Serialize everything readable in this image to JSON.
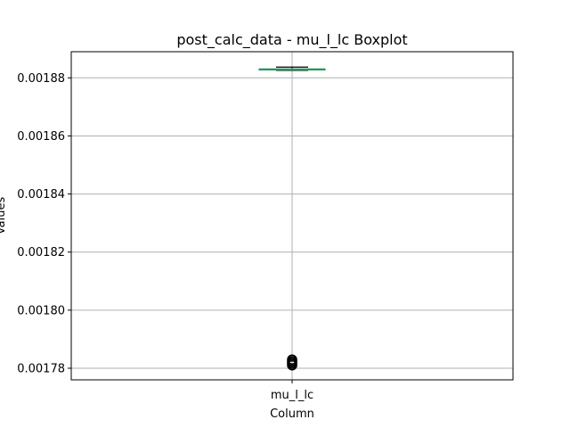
{
  "chart_data": {
    "type": "boxplot",
    "title": "post_calc_data - mu_l_lc Boxplot",
    "xlabel": "Column",
    "ylabel": "Values",
    "categories": [
      "mu_l_lc"
    ],
    "ylim": [
      0.001776,
      0.001889
    ],
    "yticks": [
      0.00178,
      0.0018,
      0.00182,
      0.00184,
      0.00186,
      0.00188
    ],
    "ytick_labels": [
      "0.00178",
      "0.00180",
      "0.00182",
      "0.00184",
      "0.00186",
      "0.00188"
    ],
    "grid": true,
    "boxes": [
      {
        "category": "mu_l_lc",
        "whisker_low": 0.0018826,
        "q1": 0.0018827,
        "median": 0.0018829,
        "q3": 0.0018831,
        "whisker_high": 0.0018837,
        "outliers": [
          0.001781,
          0.0017815,
          0.001782,
          0.0017825,
          0.001783
        ]
      }
    ],
    "colors": {
      "median": "#2ca02c",
      "box": "#1f77b4",
      "grid": "#b0b0b0",
      "outlier": "#000000"
    }
  }
}
